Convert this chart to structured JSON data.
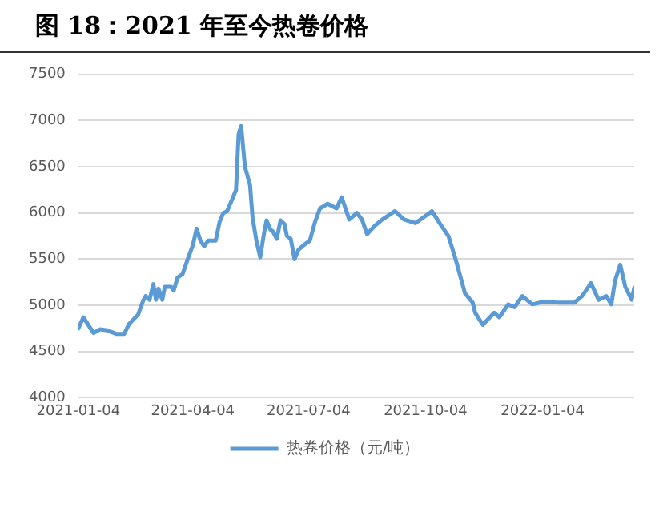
{
  "chart_data": {
    "type": "line",
    "title": "图 18：2021 年至今热卷价格",
    "x": [
      "2021-01-04",
      "2021-01-08",
      "2021-01-16",
      "2021-01-21",
      "2021-01-27",
      "2021-02-03",
      "2021-02-09",
      "2021-02-13",
      "2021-02-20",
      "2021-02-24",
      "2021-02-26",
      "2021-03-01",
      "2021-03-04",
      "2021-03-06",
      "2021-03-08",
      "2021-03-11",
      "2021-03-13",
      "2021-03-18",
      "2021-03-20",
      "2021-03-23",
      "2021-03-27",
      "2021-03-31",
      "2021-04-04",
      "2021-04-07",
      "2021-04-10",
      "2021-04-13",
      "2021-04-16",
      "2021-04-22",
      "2021-04-25",
      "2021-04-28",
      "2021-05-01",
      "2021-05-05",
      "2021-05-08",
      "2021-05-10",
      "2021-05-12",
      "2021-05-15",
      "2021-05-19",
      "2021-05-21",
      "2021-05-24",
      "2021-05-27",
      "2021-05-30",
      "2021-06-01",
      "2021-06-04",
      "2021-06-06",
      "2021-06-09",
      "2021-06-12",
      "2021-06-15",
      "2021-06-17",
      "2021-06-20",
      "2021-06-23",
      "2021-06-26",
      "2021-06-30",
      "2021-07-05",
      "2021-07-09",
      "2021-07-13",
      "2021-07-19",
      "2021-07-26",
      "2021-07-30",
      "2021-08-05",
      "2021-08-11",
      "2021-08-15",
      "2021-08-19",
      "2021-08-25",
      "2021-08-31",
      "2021-09-10",
      "2021-09-17",
      "2021-09-26",
      "2021-10-09",
      "2021-10-15",
      "2021-10-22",
      "2021-10-28",
      "2021-11-04",
      "2021-11-10",
      "2021-11-12",
      "2021-11-18",
      "2021-11-27",
      "2021-12-01",
      "2021-12-08",
      "2021-12-13",
      "2021-12-19",
      "2021-12-27",
      "2022-01-05",
      "2022-01-16",
      "2022-01-29",
      "2022-02-04",
      "2022-02-11",
      "2022-02-17",
      "2022-02-23",
      "2022-02-27",
      "2022-03-02",
      "2022-03-06",
      "2022-03-10",
      "2022-03-15",
      "2022-03-17"
    ],
    "series": [
      {
        "name": "热卷价格（元/吨）",
        "color": "#5b9bd5",
        "values": [
          4750,
          4870,
          4700,
          4740,
          4730,
          4690,
          4690,
          4800,
          4900,
          5050,
          5100,
          5060,
          5230,
          5060,
          5180,
          5060,
          5200,
          5200,
          5160,
          5300,
          5340,
          5500,
          5650,
          5830,
          5700,
          5640,
          5700,
          5700,
          5900,
          6000,
          6020,
          6150,
          6250,
          6850,
          6940,
          6500,
          6300,
          5950,
          5700,
          5520,
          5780,
          5920,
          5820,
          5800,
          5720,
          5920,
          5880,
          5750,
          5720,
          5500,
          5600,
          5650,
          5700,
          5900,
          6050,
          6100,
          6050,
          6170,
          5930,
          6000,
          5930,
          5770,
          5860,
          5930,
          6020,
          5930,
          5890,
          6020,
          5890,
          5750,
          5480,
          5130,
          5030,
          4920,
          4790,
          4920,
          4870,
          5010,
          4980,
          5100,
          5010,
          5040,
          5030,
          5030,
          5100,
          5240,
          5060,
          5100,
          5010,
          5270,
          5440,
          5200,
          5060,
          5190
        ]
      }
    ],
    "xlim": [
      "2021-01-04",
      "2022-03-17"
    ],
    "xticks": [
      "2021-01-04",
      "2021-04-04",
      "2021-07-04",
      "2021-10-04",
      "2022-01-04"
    ],
    "ylim": [
      4000,
      7500
    ],
    "yticks": [
      4000,
      4500,
      5000,
      5500,
      6000,
      6500,
      7000,
      7500
    ],
    "grid": "y",
    "legend": "bottom",
    "marker": "none",
    "line_style": "solid"
  }
}
